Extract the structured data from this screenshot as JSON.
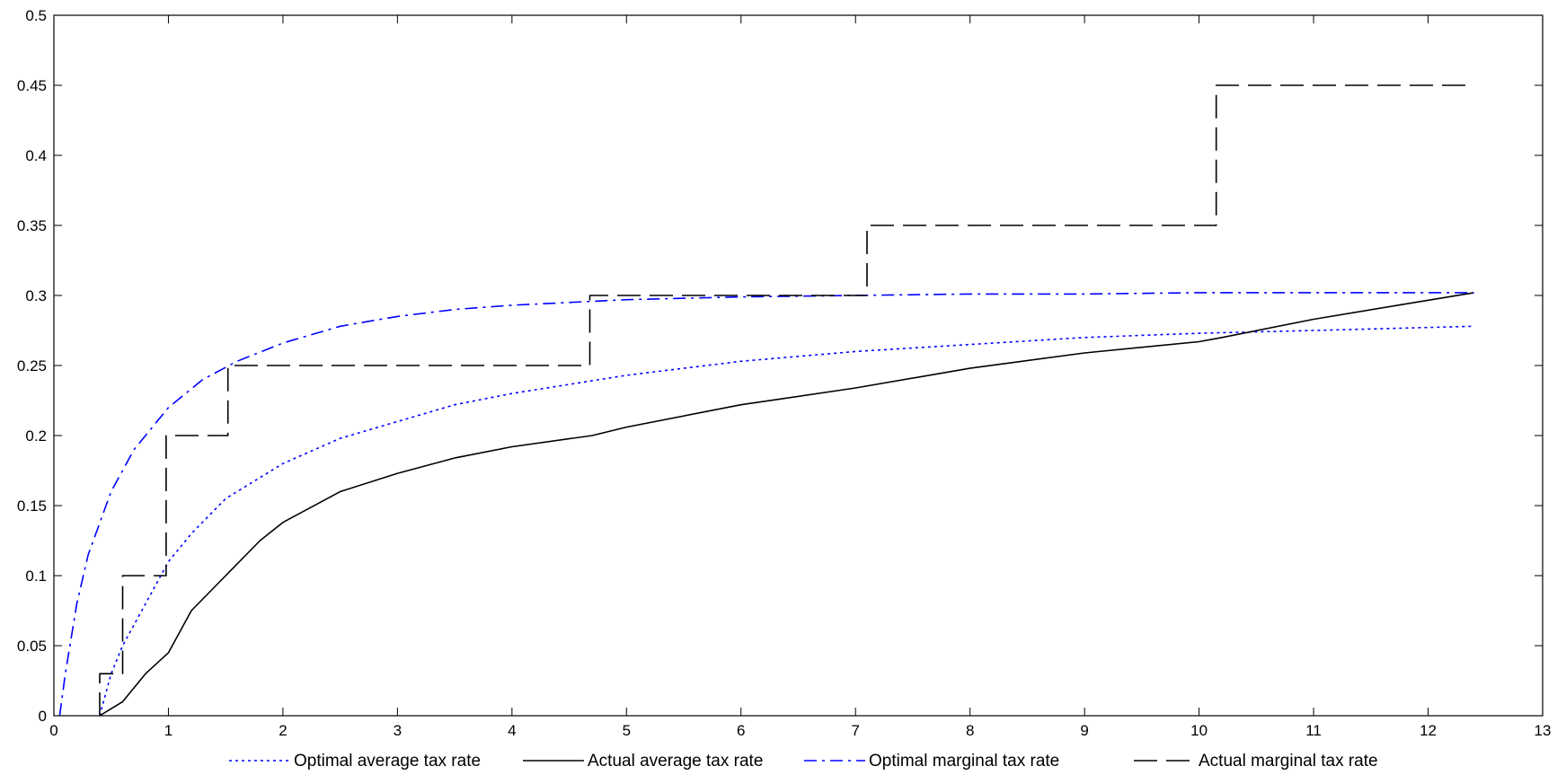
{
  "chart_data": {
    "type": "line",
    "title": "",
    "xlabel": "",
    "ylabel": "",
    "xlim": [
      0,
      13
    ],
    "ylim": [
      0,
      0.5
    ],
    "xticks": [
      0,
      1,
      2,
      3,
      4,
      5,
      6,
      7,
      8,
      9,
      10,
      11,
      12,
      13
    ],
    "xtick_labels": [
      "0",
      "1",
      "2",
      "3",
      "4",
      "5",
      "6",
      "7",
      "8",
      "9",
      "10",
      "11",
      "12",
      "13"
    ],
    "yticks": [
      0,
      0.05,
      0.1,
      0.15,
      0.2,
      0.25,
      0.3,
      0.35,
      0.4,
      0.45,
      0.5
    ],
    "ytick_labels": [
      "0",
      "0.05",
      "0.1",
      "0.15",
      "0.2",
      "0.25",
      "0.3",
      "0.35",
      "0.4",
      "0.45",
      "0.5"
    ],
    "grid": false,
    "legend_position": "bottom",
    "series": [
      {
        "name": "Optimal average tax rate",
        "color": "#0000ff",
        "style": "dotted",
        "x": [
          0.4,
          0.5,
          0.6,
          0.8,
          1.0,
          1.2,
          1.5,
          2.0,
          2.5,
          3.0,
          3.5,
          4.0,
          5.0,
          6.0,
          7.0,
          8.0,
          9.0,
          10.0,
          11.0,
          12.4
        ],
        "y": [
          0.0,
          0.03,
          0.05,
          0.08,
          0.11,
          0.13,
          0.155,
          0.18,
          0.198,
          0.21,
          0.222,
          0.23,
          0.243,
          0.253,
          0.26,
          0.265,
          0.27,
          0.273,
          0.275,
          0.278
        ]
      },
      {
        "name": "Actual average tax rate",
        "color": "#000000",
        "style": "solid",
        "x": [
          0.4,
          0.5,
          0.6,
          0.8,
          1.0,
          1.2,
          1.5,
          1.8,
          2.0,
          2.5,
          3.0,
          3.5,
          4.0,
          4.7,
          5.0,
          6.0,
          7.0,
          8.0,
          9.0,
          10.0,
          10.2,
          11.0,
          12.4
        ],
        "y": [
          0.0,
          0.005,
          0.01,
          0.03,
          0.045,
          0.075,
          0.1,
          0.125,
          0.138,
          0.16,
          0.173,
          0.184,
          0.192,
          0.2,
          0.206,
          0.222,
          0.234,
          0.248,
          0.259,
          0.267,
          0.27,
          0.283,
          0.302
        ]
      },
      {
        "name": "Optimal marginal tax rate",
        "color": "#0000ff",
        "style": "dashdot",
        "x": [
          0.05,
          0.1,
          0.2,
          0.3,
          0.5,
          0.7,
          1.0,
          1.3,
          1.6,
          2.0,
          2.5,
          3.0,
          3.5,
          4.0,
          5.0,
          6.0,
          7.0,
          8.0,
          9.0,
          10.0,
          11.0,
          12.4
        ],
        "y": [
          0.0,
          0.03,
          0.08,
          0.115,
          0.16,
          0.19,
          0.22,
          0.24,
          0.253,
          0.266,
          0.278,
          0.285,
          0.29,
          0.293,
          0.297,
          0.299,
          0.3,
          0.301,
          0.301,
          0.302,
          0.302,
          0.302
        ]
      },
      {
        "name": "Actual marginal tax rate",
        "color": "#000000",
        "style": "dashed",
        "x": [
          0.4,
          0.4,
          0.6,
          0.6,
          0.98,
          0.98,
          1.52,
          1.52,
          4.68,
          4.68,
          7.1,
          7.1,
          10.15,
          10.15,
          12.4
        ],
        "y": [
          0.0,
          0.03,
          0.03,
          0.1,
          0.1,
          0.2,
          0.2,
          0.25,
          0.25,
          0.3,
          0.3,
          0.35,
          0.35,
          0.45,
          0.45
        ]
      }
    ]
  }
}
